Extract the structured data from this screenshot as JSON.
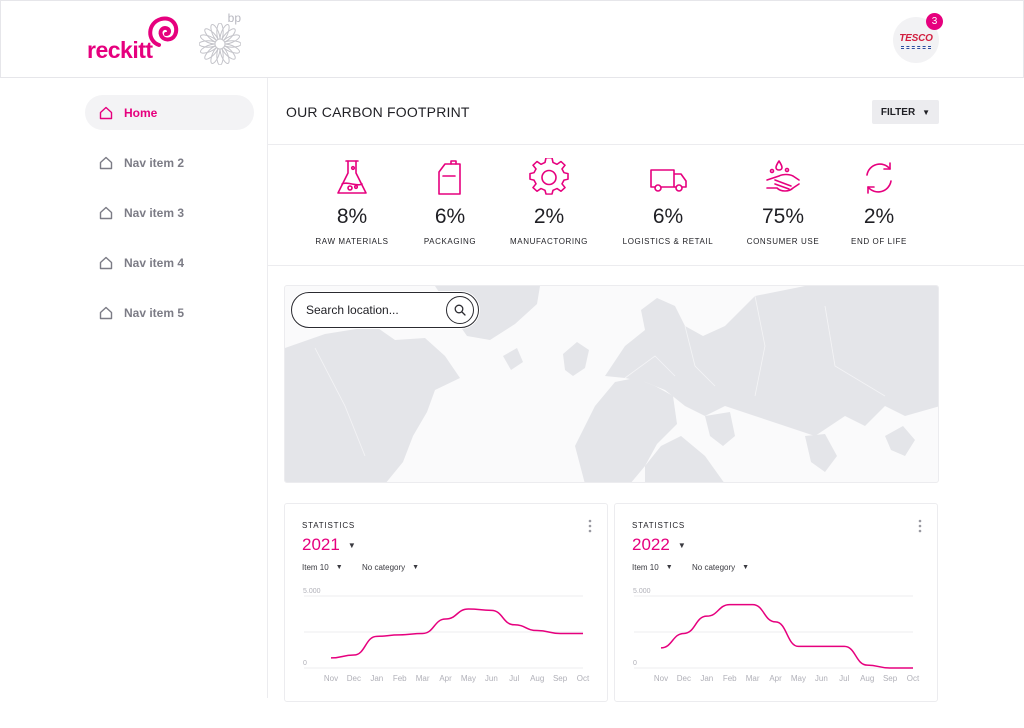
{
  "header": {
    "brand_name": "reckitt",
    "partner_name": "bp",
    "retailer_name": "TESCO",
    "notification_count": "3",
    "colors": {
      "accent": "#e6007e"
    }
  },
  "sidebar": {
    "items": [
      {
        "label": "Home",
        "active": true,
        "icon": "home-icon"
      },
      {
        "label": "Nav item 2",
        "active": false,
        "icon": "home-icon"
      },
      {
        "label": "Nav item 3",
        "active": false,
        "icon": "home-icon"
      },
      {
        "label": "Nav item 4",
        "active": false,
        "icon": "home-icon"
      },
      {
        "label": "Nav item 5",
        "active": false,
        "icon": "home-icon"
      }
    ]
  },
  "main": {
    "title": "OUR CARBON FOOTPRINT",
    "filter_label": "FILTER",
    "metrics": [
      {
        "value": "8%",
        "label": "RAW MATERIALS",
        "icon": "flask-icon"
      },
      {
        "value": "6%",
        "label": "PACKAGING",
        "icon": "jerrycan-icon"
      },
      {
        "value": "2%",
        "label": "MANUFACTORING",
        "icon": "gear-icon"
      },
      {
        "value": "6%",
        "label": "LOGISTICS & RETAIL",
        "icon": "truck-icon"
      },
      {
        "value": "75%",
        "label": "CONSUMER USE",
        "icon": "hand-washing-icon"
      },
      {
        "value": "2%",
        "label": "END OF LIFE",
        "icon": "recycle-icon"
      }
    ],
    "search": {
      "placeholder": "Search location..."
    }
  },
  "stats": [
    {
      "label": "STATISTICS",
      "year": "2021",
      "item_select": "Item 10",
      "category_select": "No category",
      "chart_data": {
        "type": "line",
        "categories": [
          "Nov",
          "Dec",
          "Jan",
          "Feb",
          "Mar",
          "Apr",
          "May",
          "Jun",
          "Jul",
          "Aug",
          "Sep",
          "Oct"
        ],
        "y_tick_labels": [
          "5.000",
          "0"
        ],
        "ylim": [
          0,
          5000
        ],
        "grid": true,
        "series": [
          {
            "values": [
              700,
              900,
              2200,
              2300,
              2400,
              3400,
              4100,
              4000,
              3000,
              2600,
              2400,
              2400
            ]
          }
        ]
      }
    },
    {
      "label": "STATISTICS",
      "year": "2022",
      "item_select": "Item 10",
      "category_select": "No category",
      "chart_data": {
        "type": "line",
        "categories": [
          "Nov",
          "Dec",
          "Jan",
          "Feb",
          "Mar",
          "Apr",
          "May",
          "Jun",
          "Jul",
          "Aug",
          "Sep",
          "Oct"
        ],
        "y_tick_labels": [
          "5.000",
          "0"
        ],
        "ylim": [
          0,
          5000
        ],
        "grid": true,
        "series": [
          {
            "values": [
              1400,
              2400,
              3600,
              4400,
              4400,
              3200,
              1500,
              1500,
              1500,
              200,
              0,
              0
            ]
          }
        ]
      }
    }
  ]
}
